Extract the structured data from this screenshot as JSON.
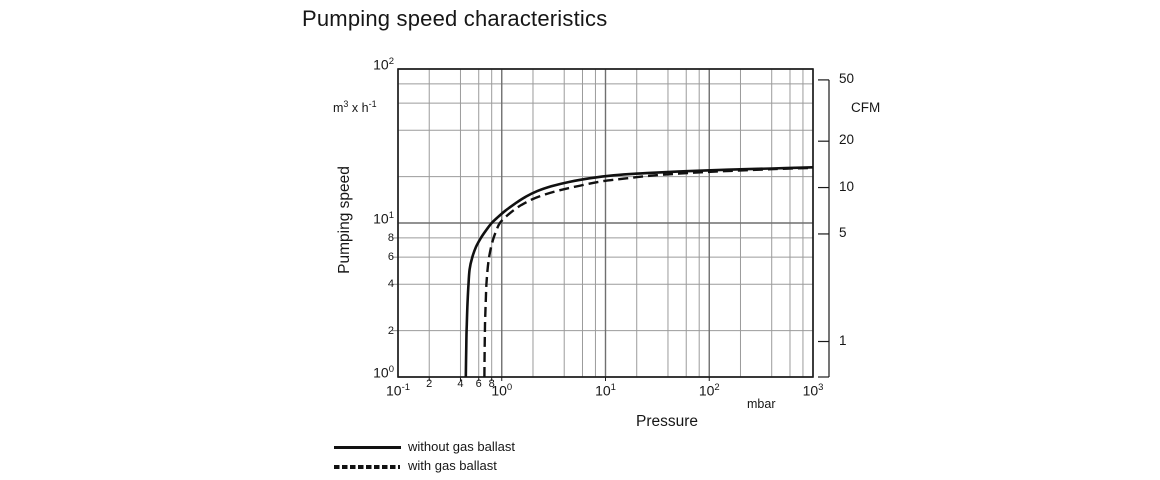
{
  "title": "Pumping speed characteristics",
  "chart_data": {
    "type": "line",
    "title": "Pumping speed characteristics",
    "x_axis": {
      "label": "Pressure",
      "unit": "mbar",
      "scale": "log",
      "range": [
        0.1,
        1000
      ],
      "major_ticks": [
        {
          "base": "10",
          "exp": "-1",
          "value": 0.1
        },
        {
          "base": "10",
          "exp": "0",
          "value": 1
        },
        {
          "base": "10",
          "exp": "1",
          "value": 10
        },
        {
          "base": "10",
          "exp": "2",
          "value": 100
        },
        {
          "base": "10",
          "exp": "3",
          "value": 1000
        }
      ],
      "minor_multiples": [
        2,
        4,
        6,
        8
      ],
      "labeled_minors": [
        {
          "text": "2",
          "value": 0.2
        },
        {
          "text": "4",
          "value": 0.4
        },
        {
          "text": "6",
          "value": 0.6
        },
        {
          "text": "8",
          "value": 0.8
        }
      ]
    },
    "y_axis": {
      "label": "Pumping speed",
      "unit_segments": [
        {
          "text": "m"
        },
        {
          "text": "3",
          "sup": true
        },
        {
          "text": " x h"
        },
        {
          "text": "-1",
          "sup": true
        }
      ],
      "scale": "log",
      "range": [
        1,
        100
      ],
      "major_ticks": [
        {
          "base": "10",
          "exp": "0",
          "value": 1
        },
        {
          "base": "10",
          "exp": "1",
          "value": 10
        },
        {
          "base": "10",
          "exp": "2",
          "value": 100
        }
      ],
      "minor_multiples": [
        2,
        4,
        6,
        8
      ],
      "labeled_minors": [
        {
          "text": "8",
          "value": 8
        },
        {
          "text": "6",
          "value": 6
        },
        {
          "text": "4",
          "value": 4
        },
        {
          "text": "2",
          "value": 2
        }
      ]
    },
    "y2_axis": {
      "label": "CFM",
      "ticks": [
        {
          "label": "50",
          "m3h": 84.95
        },
        {
          "label": "20",
          "m3h": 33.98
        },
        {
          "label": "10",
          "m3h": 16.99
        },
        {
          "label": "5",
          "m3h": 8.49
        },
        {
          "label": "1",
          "m3h": 1.7
        }
      ]
    },
    "grid": "log-log, minor gridlines at 2, 4, 6, 8 in every decade",
    "legend_position": "bottom-left",
    "series": [
      {
        "name": "without gas ballast",
        "line_style": "solid",
        "points": [
          [
            0.45,
            1.0
          ],
          [
            0.455,
            1.6
          ],
          [
            0.46,
            2.2
          ],
          [
            0.468,
            3.0
          ],
          [
            0.478,
            4.0
          ],
          [
            0.49,
            5.0
          ],
          [
            0.52,
            6.0
          ],
          [
            0.565,
            7.0
          ],
          [
            0.63,
            8.0
          ],
          [
            0.71,
            9.0
          ],
          [
            0.8,
            10.0
          ],
          [
            0.93,
            11.0
          ],
          [
            1.08,
            12.0
          ],
          [
            1.35,
            13.4
          ],
          [
            1.7,
            14.8
          ],
          [
            2.2,
            16.1
          ],
          [
            3.0,
            17.3
          ],
          [
            4.5,
            18.5
          ],
          [
            7.0,
            19.5
          ],
          [
            12,
            20.4
          ],
          [
            25,
            21.1
          ],
          [
            60,
            21.7
          ],
          [
            150,
            22.2
          ],
          [
            400,
            22.6
          ],
          [
            1000,
            23.0
          ]
        ]
      },
      {
        "name": "with gas ballast",
        "line_style": "dashed",
        "points": [
          [
            0.68,
            1.0
          ],
          [
            0.685,
            1.6
          ],
          [
            0.69,
            2.2
          ],
          [
            0.7,
            3.0
          ],
          [
            0.712,
            4.0
          ],
          [
            0.73,
            5.0
          ],
          [
            0.755,
            6.0
          ],
          [
            0.79,
            7.0
          ],
          [
            0.835,
            8.0
          ],
          [
            0.89,
            9.0
          ],
          [
            0.96,
            10.0
          ],
          [
            1.1,
            11.0
          ],
          [
            1.28,
            12.0
          ],
          [
            1.55,
            13.1
          ],
          [
            1.95,
            14.2
          ],
          [
            2.6,
            15.3
          ],
          [
            3.6,
            16.3
          ],
          [
            5.5,
            17.4
          ],
          [
            9.0,
            18.6
          ],
          [
            16,
            19.5
          ],
          [
            30,
            20.4
          ],
          [
            70,
            21.2
          ],
          [
            160,
            21.8
          ],
          [
            420,
            22.4
          ],
          [
            1000,
            22.8
          ]
        ]
      }
    ]
  },
  "colors": {
    "curve": "#111111",
    "grid_minor": "#9b9b9b",
    "grid_major": "#6f6f6f",
    "frame": "#1a1a1a",
    "text": "#161616",
    "background": "#ffffff"
  }
}
